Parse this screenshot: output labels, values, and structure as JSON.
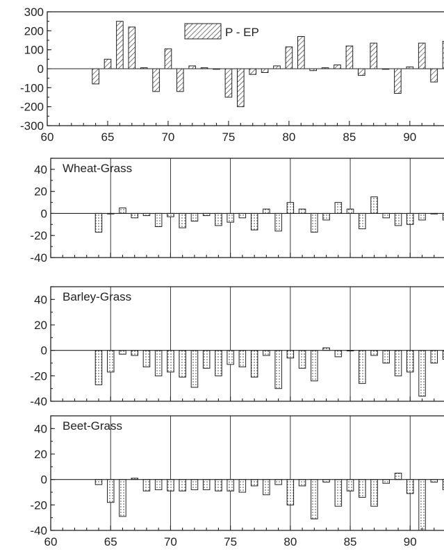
{
  "chart_data": [
    {
      "type": "bar",
      "panel": "top",
      "legend": "P - EP",
      "xlim": [
        60,
        93
      ],
      "ylim": [
        -300,
        300
      ],
      "yticks": [
        300,
        200,
        100,
        0,
        -100,
        -200,
        -300
      ],
      "xticks": [
        60,
        65,
        70,
        75,
        80,
        85,
        90
      ],
      "vgrid": [],
      "x": [
        64,
        65,
        66,
        67,
        68,
        69,
        70,
        71,
        72,
        73,
        74,
        75,
        76,
        77,
        78,
        79,
        80,
        81,
        82,
        83,
        84,
        85,
        86,
        87,
        88,
        89,
        90,
        91,
        92,
        93
      ],
      "values": [
        -80,
        50,
        250,
        220,
        5,
        -120,
        105,
        -120,
        15,
        5,
        0,
        -150,
        -200,
        -30,
        -20,
        15,
        115,
        170,
        -10,
        5,
        20,
        120,
        -35,
        135,
        0,
        -130,
        10,
        135,
        -70,
        145
      ],
      "fill": "hatch"
    },
    {
      "type": "bar",
      "panel": "Wheat-Grass",
      "title": "Wheat-Grass",
      "xlim": [
        60,
        93
      ],
      "ylim": [
        -40,
        50
      ],
      "yticks": [
        40,
        20,
        0,
        -20,
        -40
      ],
      "vgrid": [
        65,
        70,
        75,
        80,
        85,
        90
      ],
      "x": [
        64,
        65,
        66,
        67,
        68,
        69,
        70,
        71,
        72,
        73,
        74,
        75,
        76,
        77,
        78,
        79,
        80,
        81,
        82,
        83,
        84,
        85,
        86,
        87,
        88,
        89,
        90,
        91,
        92,
        93
      ],
      "values": [
        -17,
        0,
        5,
        -4,
        -2,
        -12,
        -3,
        -13,
        -7,
        -2,
        -11,
        -8,
        -4,
        -15,
        4,
        -16,
        10,
        4,
        -17,
        -6,
        10,
        4,
        -14,
        15,
        -4,
        -11,
        -10,
        -6,
        0,
        -6
      ],
      "fill": "dots"
    },
    {
      "type": "bar",
      "panel": "Barley-Grass",
      "title": "Barley-Grass",
      "xlim": [
        60,
        93
      ],
      "ylim": [
        -40,
        50
      ],
      "yticks": [
        40,
        20,
        0,
        -20,
        -40
      ],
      "vgrid": [
        65,
        70,
        75,
        80,
        85,
        90
      ],
      "x": [
        64,
        65,
        66,
        67,
        68,
        69,
        70,
        71,
        72,
        73,
        74,
        75,
        76,
        77,
        78,
        79,
        80,
        81,
        82,
        83,
        84,
        85,
        86,
        87,
        88,
        89,
        90,
        91,
        92,
        93
      ],
      "values": [
        -27,
        -17,
        -3,
        -4,
        -13,
        -20,
        -17,
        -21,
        -29,
        -14,
        -20,
        -11,
        -13,
        -21,
        -4,
        -30,
        -6,
        -14,
        -24,
        2,
        -5,
        0,
        -26,
        -4,
        -10,
        -20,
        -17,
        -36,
        -10,
        -7
      ],
      "fill": "dots"
    },
    {
      "type": "bar",
      "panel": "Beet-Grass",
      "title": "Beet-Grass",
      "xlim": [
        60,
        93
      ],
      "ylim": [
        -40,
        50
      ],
      "yticks": [
        40,
        20,
        0,
        -20,
        -40
      ],
      "xticks": [
        60,
        65,
        70,
        75,
        80,
        85,
        90
      ],
      "vgrid": [
        65,
        70,
        75,
        80,
        85,
        90
      ],
      "x": [
        64,
        65,
        66,
        67,
        68,
        69,
        70,
        71,
        72,
        73,
        74,
        75,
        76,
        77,
        78,
        79,
        80,
        81,
        82,
        83,
        84,
        85,
        86,
        87,
        88,
        89,
        90,
        91,
        92,
        93
      ],
      "values": [
        -4,
        -18,
        -29,
        1,
        -9,
        -8,
        -9,
        -9,
        -8,
        -8,
        -9,
        -9,
        -10,
        -5,
        -12,
        -4,
        -20,
        -5,
        -31,
        -2,
        -21,
        -9,
        -14,
        -21,
        -3,
        5,
        -11,
        -40,
        -2,
        -8
      ],
      "fill": "dots"
    }
  ]
}
